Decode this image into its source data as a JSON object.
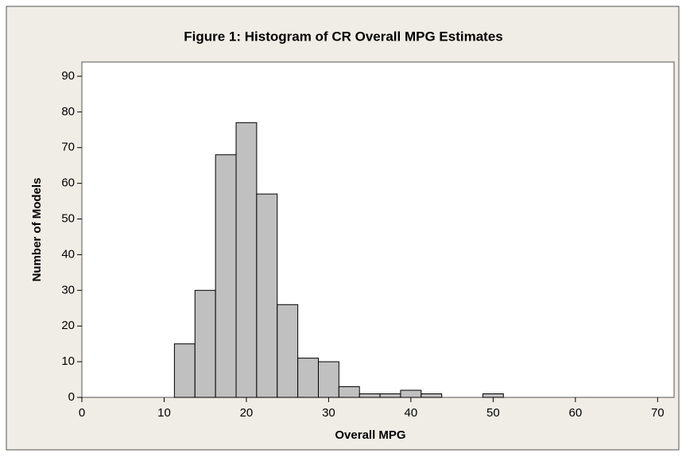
{
  "chart_data": {
    "type": "histogram",
    "title": "Figure 1: Histogram of CR Overall MPG Estimates",
    "x_label": "Overall MPG",
    "y_label": "Number of Models",
    "bins": [
      11.25,
      13.75,
      16.25,
      18.75,
      21.25,
      23.75,
      26.25,
      28.75,
      31.25,
      33.75,
      36.25,
      38.75,
      41.25,
      43.75,
      46.25,
      48.75,
      51.25,
      53.75,
      56.25,
      58.75,
      61.25,
      63.75,
      66.25
    ],
    "values": [
      15,
      30,
      68,
      77,
      57,
      26,
      11,
      10,
      3,
      1,
      1,
      2,
      1,
      0,
      0,
      1,
      0,
      0,
      0,
      0,
      0,
      0
    ],
    "color": "#c0c0c0",
    "xlim": [
      0,
      72
    ],
    "xticks": [
      0,
      10,
      20,
      30,
      40,
      50,
      60,
      70
    ],
    "ylim": [
      0,
      94
    ],
    "yticks": [
      0,
      10,
      20,
      30,
      40,
      50,
      60,
      70,
      80,
      90
    ]
  }
}
